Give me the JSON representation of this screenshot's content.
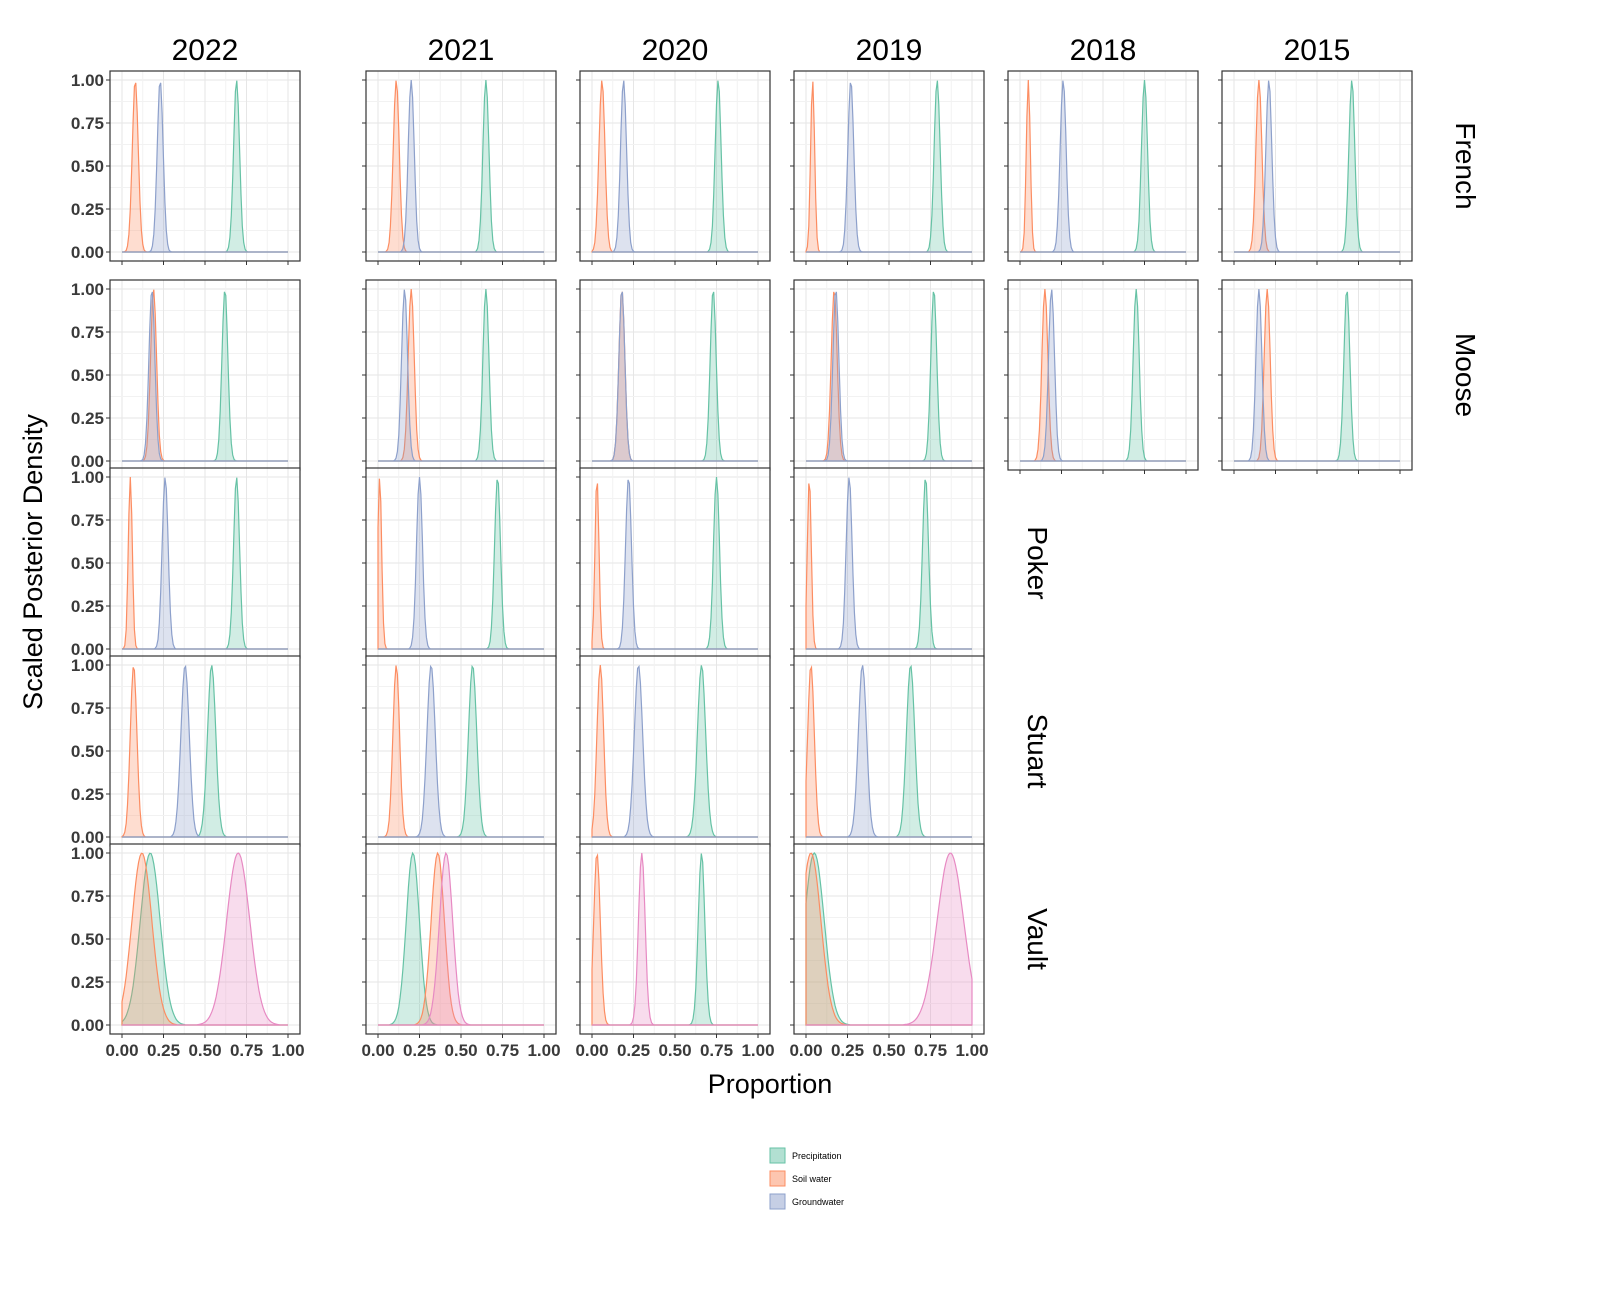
{
  "chart_data": {
    "type": "area",
    "xlabel": "Proportion",
    "ylabel": "Scaled Posterior Density",
    "xlim": [
      0,
      1
    ],
    "ylim": [
      0,
      1
    ],
    "x_ticks": [
      "0.00",
      "0.25",
      "0.50",
      "0.75",
      "1.00"
    ],
    "y_ticks": [
      "0.00",
      "0.25",
      "0.50",
      "0.75",
      "1.00"
    ],
    "columns": [
      "2022",
      "2021",
      "2020",
      "2019",
      "2018",
      "2015"
    ],
    "rows": [
      "French",
      "Moose",
      "Poker",
      "Stuart",
      "Vault"
    ],
    "grid": true,
    "legend_position": "bottom-center",
    "legend": [
      {
        "name": "Precipitation",
        "color": "#66c2a5"
      },
      {
        "name": "Soil water",
        "color": "#fc8d62"
      },
      {
        "name": "Groundwater",
        "color": "#8da0cb"
      }
    ],
    "extra_series_color": "#e78ac3",
    "panels": [
      {
        "row": "French",
        "column": "2022",
        "peaks": {
          "precipitation": 0.69,
          "soil": 0.08,
          "groundwater": 0.23
        }
      },
      {
        "row": "French",
        "column": "2021",
        "peaks": {
          "precipitation": 0.65,
          "soil": 0.11,
          "groundwater": 0.2
        }
      },
      {
        "row": "French",
        "column": "2020",
        "peaks": {
          "precipitation": 0.76,
          "soil": 0.06,
          "groundwater": 0.19
        }
      },
      {
        "row": "French",
        "column": "2019",
        "peaks": {
          "precipitation": 0.79,
          "soil": 0.04,
          "groundwater": 0.27
        }
      },
      {
        "row": "French",
        "column": "2018",
        "peaks": {
          "precipitation": 0.75,
          "soil": 0.05,
          "groundwater": 0.26
        }
      },
      {
        "row": "French",
        "column": "2015",
        "peaks": {
          "precipitation": 0.71,
          "soil": 0.15,
          "groundwater": 0.21
        }
      },
      {
        "row": "Moose",
        "column": "2022",
        "peaks": {
          "precipitation": 0.62,
          "soil": 0.19,
          "groundwater": 0.18
        }
      },
      {
        "row": "Moose",
        "column": "2021",
        "peaks": {
          "precipitation": 0.65,
          "soil": 0.2,
          "groundwater": 0.16
        }
      },
      {
        "row": "Moose",
        "column": "2020",
        "peaks": {
          "precipitation": 0.73,
          "soil": 0.18,
          "groundwater": 0.18
        }
      },
      {
        "row": "Moose",
        "column": "2019",
        "peaks": {
          "precipitation": 0.77,
          "soil": 0.17,
          "groundwater": 0.18
        }
      },
      {
        "row": "Moose",
        "column": "2018",
        "peaks": {
          "precipitation": 0.7,
          "soil": 0.15,
          "groundwater": 0.19
        }
      },
      {
        "row": "Moose",
        "column": "2015",
        "peaks": {
          "precipitation": 0.68,
          "soil": 0.2,
          "groundwater": 0.15
        }
      },
      {
        "row": "Poker",
        "column": "2022",
        "peaks": {
          "precipitation": 0.69,
          "soil": 0.05,
          "groundwater": 0.26
        }
      },
      {
        "row": "Poker",
        "column": "2021",
        "peaks": {
          "precipitation": 0.72,
          "soil": 0.01,
          "groundwater": 0.25
        }
      },
      {
        "row": "Poker",
        "column": "2020",
        "peaks": {
          "precipitation": 0.75,
          "soil": 0.03,
          "groundwater": 0.22
        }
      },
      {
        "row": "Poker",
        "column": "2019",
        "peaks": {
          "precipitation": 0.72,
          "soil": 0.02,
          "groundwater": 0.26
        }
      },
      {
        "row": "Stuart",
        "column": "2022",
        "peaks": {
          "precipitation": 0.54,
          "soil": 0.07,
          "groundwater": 0.38
        }
      },
      {
        "row": "Stuart",
        "column": "2021",
        "peaks": {
          "precipitation": 0.57,
          "soil": 0.11,
          "groundwater": 0.32
        }
      },
      {
        "row": "Stuart",
        "column": "2020",
        "peaks": {
          "precipitation": 0.66,
          "soil": 0.05,
          "groundwater": 0.28
        }
      },
      {
        "row": "Stuart",
        "column": "2019",
        "peaks": {
          "precipitation": 0.63,
          "soil": 0.03,
          "groundwater": 0.34
        }
      },
      {
        "row": "Vault",
        "column": "2022",
        "peaks": {
          "precipitation": 0.17,
          "soil": 0.12,
          "groundwater": 0.7
        }
      },
      {
        "row": "Vault",
        "column": "2021",
        "peaks": {
          "precipitation": 0.21,
          "soil": 0.36,
          "groundwater": 0.41
        }
      },
      {
        "row": "Vault",
        "column": "2020",
        "peaks": {
          "precipitation": 0.66,
          "soil": 0.03,
          "groundwater": 0.3
        }
      },
      {
        "row": "Vault",
        "column": "2019",
        "peaks": {
          "precipitation": 0.05,
          "soil": 0.03,
          "groundwater": 0.87
        }
      }
    ]
  }
}
